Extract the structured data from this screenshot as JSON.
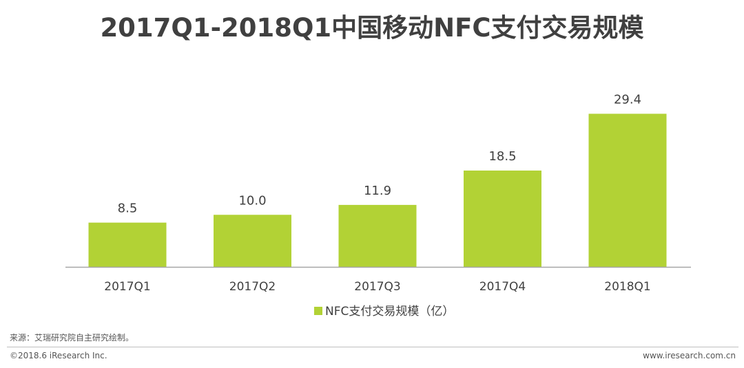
{
  "chart_data": {
    "type": "bar",
    "title": "2017Q1-2018Q1中国移动NFC支付交易规模",
    "categories": [
      "2017Q1",
      "2017Q2",
      "2017Q3",
      "2017Q4",
      "2018Q1"
    ],
    "series": [
      {
        "name": "NFC支付交易规模（亿）",
        "values": [
          8.5,
          10.0,
          11.9,
          18.5,
          29.4
        ],
        "labels": [
          "8.5",
          "10.0",
          "11.9",
          "18.5",
          "29.4"
        ],
        "color": "#b2d235"
      }
    ],
    "xlabel": "",
    "ylabel": "",
    "ylim": [
      0,
      35
    ],
    "grid": false,
    "legend": "bottom-center"
  },
  "footer": {
    "source": "来源：艾瑞研究院自主研究绘制。",
    "copyright": "©2018.6 iResearch Inc.",
    "website": "www.iresearch.com.cn"
  },
  "colors": {
    "bar": "#b2d235",
    "text": "#404040",
    "axis": "#a6a6a6"
  }
}
